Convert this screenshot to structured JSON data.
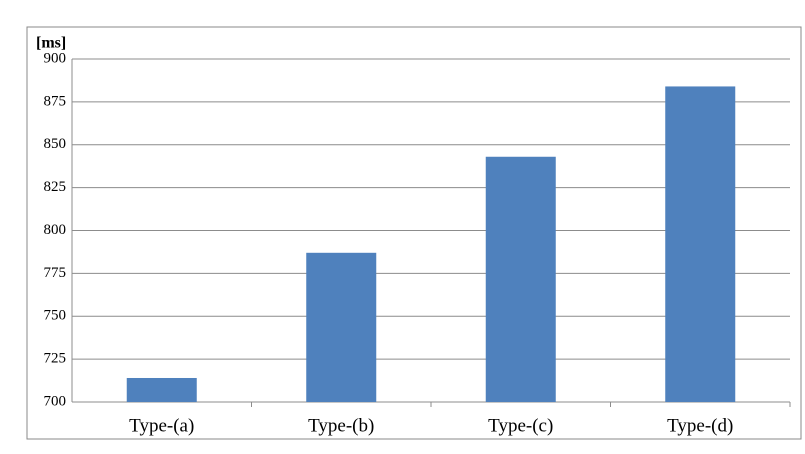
{
  "chart_data": {
    "type": "bar",
    "y_label": "[ms]",
    "categories": [
      "Type-(a)",
      "Type-(b)",
      "Type-(c)",
      "Type-(d)"
    ],
    "values": [
      714,
      787,
      843,
      884
    ],
    "color": "#4f81bd",
    "ylim": [
      700,
      900
    ],
    "yticks": [
      700,
      725,
      750,
      775,
      800,
      825,
      850,
      875,
      900
    ],
    "grid": true
  }
}
